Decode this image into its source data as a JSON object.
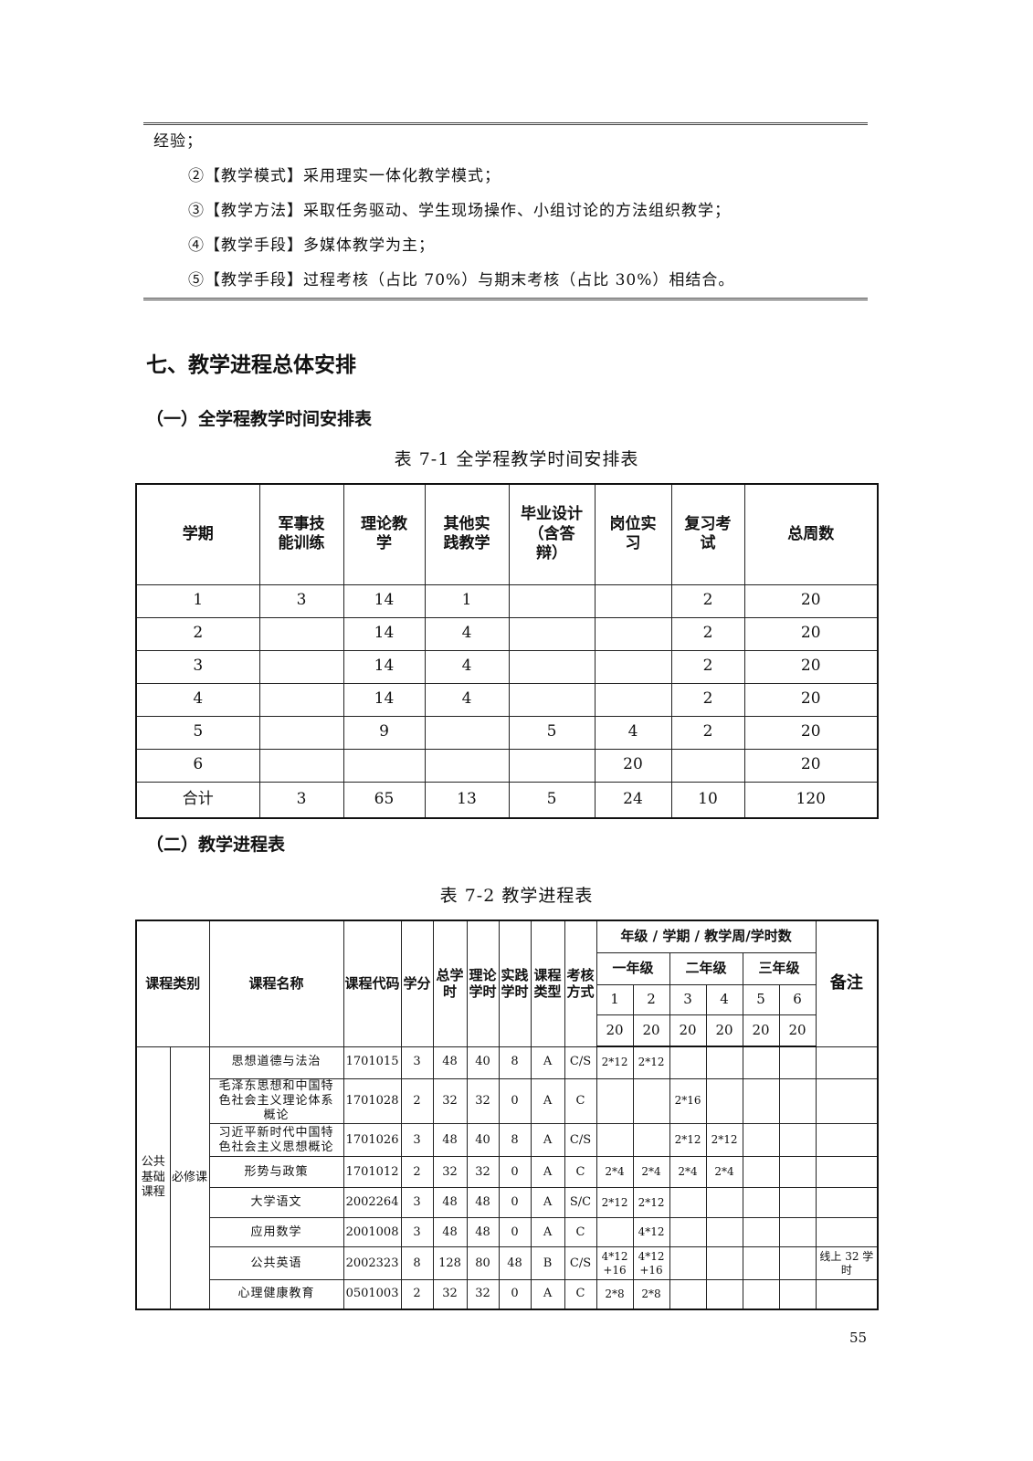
{
  "text_lines": [
    "经验；",
    "②【教学模式】采用理实一体化教学模式；",
    "③【教学方法】采取任务驱动、学生现场操作、小组讨论的方法组织教学；",
    "④【教学手段】多媒体教学为主；",
    "⑤【教学手段】过程考核（占比 70%）与期末考核（占比 30%）相结合。"
  ],
  "section_title": "七、教学进程总体安排",
  "sub1": "（一）全学程教学时间安排表",
  "caption1": "表 7-1 全学程教学时间安排表",
  "table1": {
    "headers": [
      "学期",
      "军事技能训练",
      "理论教学",
      "其他实践教学",
      "毕业设计（含答辩）",
      "岗位实习",
      "复习考试",
      "总周数"
    ],
    "rows": [
      [
        "1",
        "3",
        "14",
        "1",
        "",
        "",
        "2",
        "20"
      ],
      [
        "2",
        "",
        "14",
        "4",
        "",
        "",
        "2",
        "20"
      ],
      [
        "3",
        "",
        "14",
        "4",
        "",
        "",
        "2",
        "20"
      ],
      [
        "4",
        "",
        "14",
        "4",
        "",
        "",
        "2",
        "20"
      ],
      [
        "5",
        "",
        "9",
        "",
        "5",
        "4",
        "2",
        "20"
      ],
      [
        "6",
        "",
        "",
        "",
        "",
        "20",
        "",
        "20"
      ],
      [
        "合计",
        "3",
        "65",
        "13",
        "5",
        "24",
        "10",
        "120"
      ]
    ]
  },
  "sub2": "（二）教学进程表",
  "caption2": "表 7-2 教学进程表",
  "table2": {
    "h_category": "课程类别",
    "h_name": "课程名称",
    "h_code": "课程代码",
    "h_credit": "学分",
    "h_total": "总学时",
    "h_theory": "理论学时",
    "h_practice": "实践学时",
    "h_type": "课程类型",
    "h_exam": "考核方式",
    "h_grade": "年级 / 学期 / 教学周/学时数",
    "h_years": [
      "一年级",
      "二年级",
      "三年级"
    ],
    "h_terms": [
      "1",
      "2",
      "3",
      "4",
      "5",
      "6"
    ],
    "h_weeks": [
      "20",
      "20",
      "20",
      "20",
      "20",
      "20"
    ],
    "h_note": "备注",
    "category": "公共基础课程",
    "subcategory": "必修课",
    "rows": [
      [
        "思想道德与法治",
        "1701015",
        "3",
        "48",
        "40",
        "8",
        "A",
        "C/S",
        "2*12",
        "2*12",
        "",
        "",
        "",
        "",
        ""
      ],
      [
        "毛泽东思想和中国特色社会主义理论体系概论",
        "1701028",
        "2",
        "32",
        "32",
        "0",
        "A",
        "C",
        "",
        "",
        "2*16",
        "",
        "",
        "",
        ""
      ],
      [
        "习近平新时代中国特色社会主义思想概论",
        "1701026",
        "3",
        "48",
        "40",
        "8",
        "A",
        "C/S",
        "",
        "",
        "2*12",
        "2*12",
        "",
        "",
        ""
      ],
      [
        "形势与政策",
        "1701012",
        "2",
        "32",
        "32",
        "0",
        "A",
        "C",
        "2*4",
        "2*4",
        "2*4",
        "2*4",
        "",
        "",
        ""
      ],
      [
        "大学语文",
        "2002264",
        "3",
        "48",
        "48",
        "0",
        "A",
        "S/C",
        "2*12",
        "2*12",
        "",
        "",
        "",
        "",
        ""
      ],
      [
        "应用数学",
        "2001008",
        "3",
        "48",
        "48",
        "0",
        "A",
        "C",
        "",
        "4*12",
        "",
        "",
        "",
        "",
        ""
      ],
      [
        "公共英语",
        "2002323",
        "8",
        "128",
        "80",
        "48",
        "B",
        "C/S",
        "4*12 +16",
        "4*12 +16",
        "",
        "",
        "",
        "",
        "线上 32 学时"
      ],
      [
        "心理健康教育",
        "0501003",
        "2",
        "32",
        "32",
        "0",
        "A",
        "C",
        "2*8",
        "2*8",
        "",
        "",
        "",
        "",
        ""
      ]
    ]
  },
  "page_number": "55"
}
